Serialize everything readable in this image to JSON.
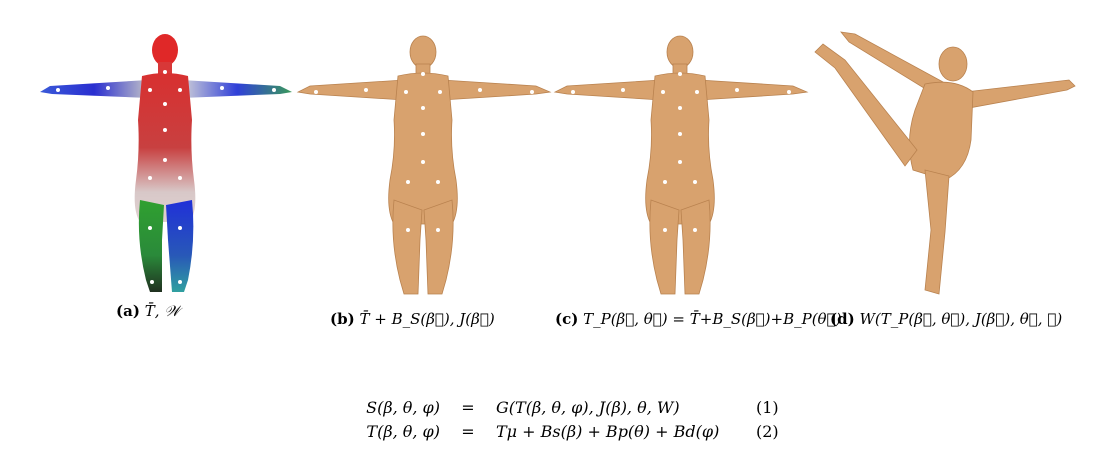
{
  "colors": {
    "skin": "#d8a26e",
    "skin_shadow": "#b9824f",
    "joint": "#ffffff"
  },
  "panels": [
    {
      "tag": "(a)",
      "text": "T̄, 𝒲"
    },
    {
      "tag": "(b)",
      "text": "T̄ + B_S(β⃗), J(β⃗)"
    },
    {
      "tag": "(c)",
      "text": "T_P(β⃗, θ⃗) = T̄+B_S(β⃗)+B_P(θ⃗)"
    },
    {
      "tag": "(d)",
      "text": "W(T_P(β⃗, θ⃗), J(β⃗), θ⃗, 𝒲)"
    }
  ],
  "equations": [
    {
      "lhs": "S(β, θ, φ)",
      "eq": "=",
      "rhs": "G(T(β, θ, φ), J(β), θ, W)",
      "num": "(1)"
    },
    {
      "lhs": "T(β, θ, φ)",
      "eq": "=",
      "rhs": "Tμ + Bs(β) + Bp(θ) + Bd(φ)",
      "num": "(2)"
    }
  ]
}
